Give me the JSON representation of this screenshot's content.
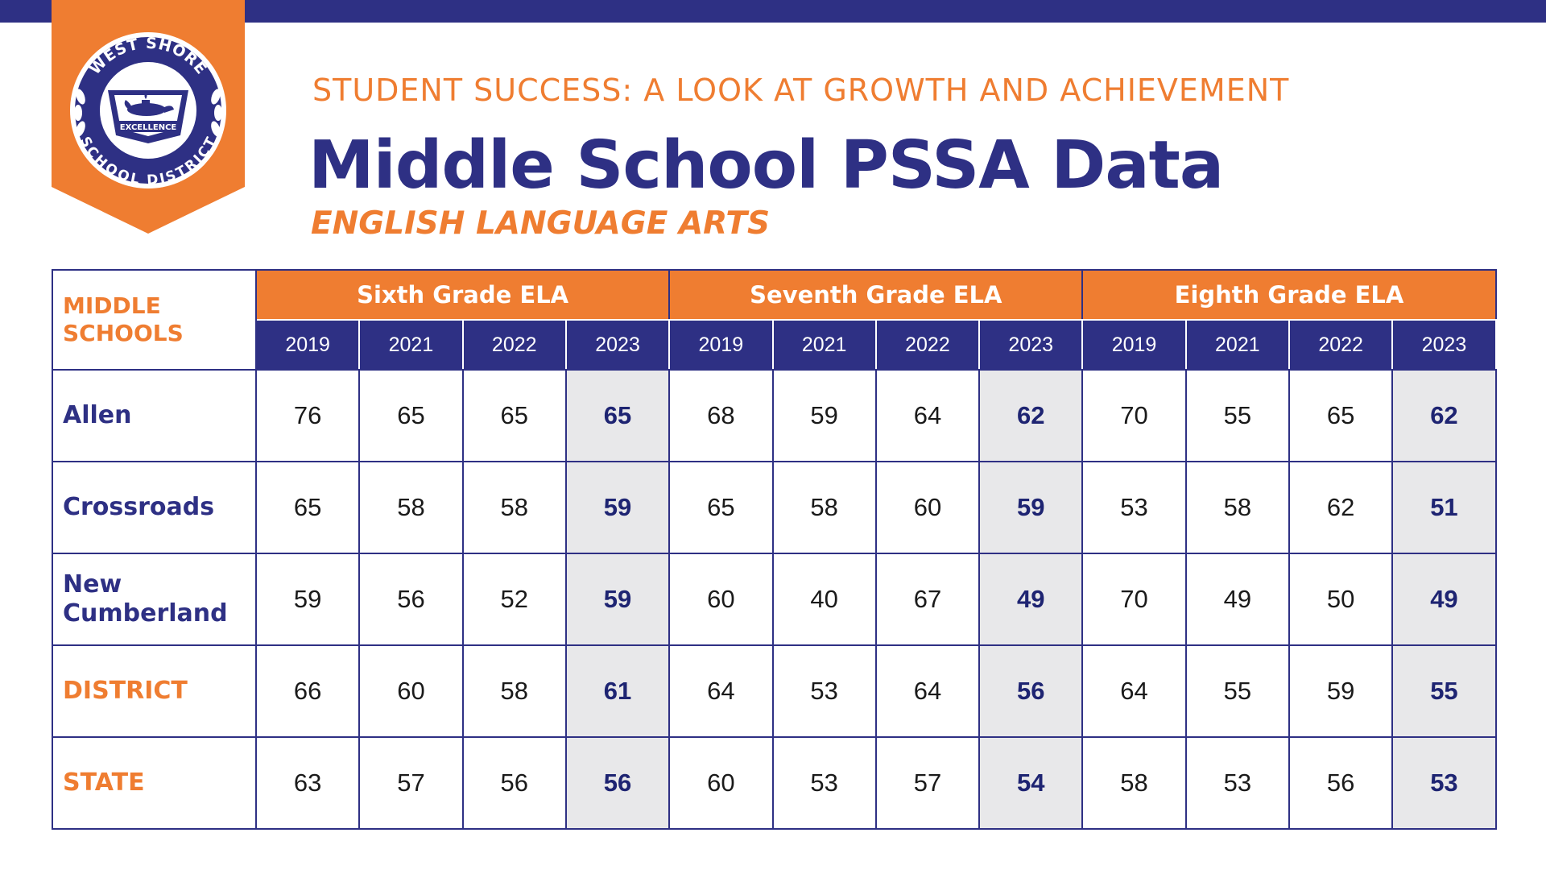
{
  "header": {
    "eyebrow": "STUDENT SUCCESS: A LOOK AT GROWTH AND ACHIEVEMENT",
    "title": "Middle School PSSA Data",
    "subtitle": "ENGLISH LANGUAGE ARTS"
  },
  "logo": {
    "top_text": "WEST SHORE",
    "bottom_text": "SCHOOL DISTRICT",
    "motto": "EXCELLENCE",
    "icon": "lamp-of-learning-icon",
    "colors": {
      "banner": "#ef7d31",
      "seal": "#2e3084"
    }
  },
  "colors": {
    "navy": "#2e3084",
    "orange": "#ef7d31",
    "highlight": "#e8e8ea"
  },
  "table": {
    "corner_label_line1": "MIDDLE",
    "corner_label_line2": "SCHOOLS",
    "grades": [
      {
        "label": "Sixth Grade ELA",
        "years": [
          "2019",
          "2021",
          "2022",
          "2023"
        ]
      },
      {
        "label": "Seventh Grade ELA",
        "years": [
          "2019",
          "2021",
          "2022",
          "2023"
        ]
      },
      {
        "label": "Eighth Grade ELA",
        "years": [
          "2019",
          "2021",
          "2022",
          "2023"
        ]
      }
    ],
    "rows": [
      {
        "label_line1": "Allen",
        "label_line2": "",
        "kind": "school",
        "values": [
          [
            76,
            65,
            65,
            65
          ],
          [
            68,
            59,
            64,
            62
          ],
          [
            70,
            55,
            65,
            62
          ]
        ]
      },
      {
        "label_line1": "Crossroads",
        "label_line2": "",
        "kind": "school",
        "values": [
          [
            65,
            58,
            58,
            59
          ],
          [
            65,
            58,
            60,
            59
          ],
          [
            53,
            58,
            62,
            51
          ]
        ]
      },
      {
        "label_line1": "New",
        "label_line2": "Cumberland",
        "kind": "school",
        "values": [
          [
            59,
            56,
            52,
            59
          ],
          [
            60,
            40,
            67,
            49
          ],
          [
            70,
            49,
            50,
            49
          ]
        ]
      },
      {
        "label_line1": "DISTRICT",
        "label_line2": "",
        "kind": "agg",
        "values": [
          [
            66,
            60,
            58,
            61
          ],
          [
            64,
            53,
            64,
            56
          ],
          [
            64,
            55,
            59,
            55
          ]
        ]
      },
      {
        "label_line1": "STATE",
        "label_line2": "",
        "kind": "agg",
        "values": [
          [
            63,
            57,
            56,
            56
          ],
          [
            60,
            53,
            57,
            54
          ],
          [
            58,
            53,
            56,
            53
          ]
        ]
      }
    ]
  }
}
